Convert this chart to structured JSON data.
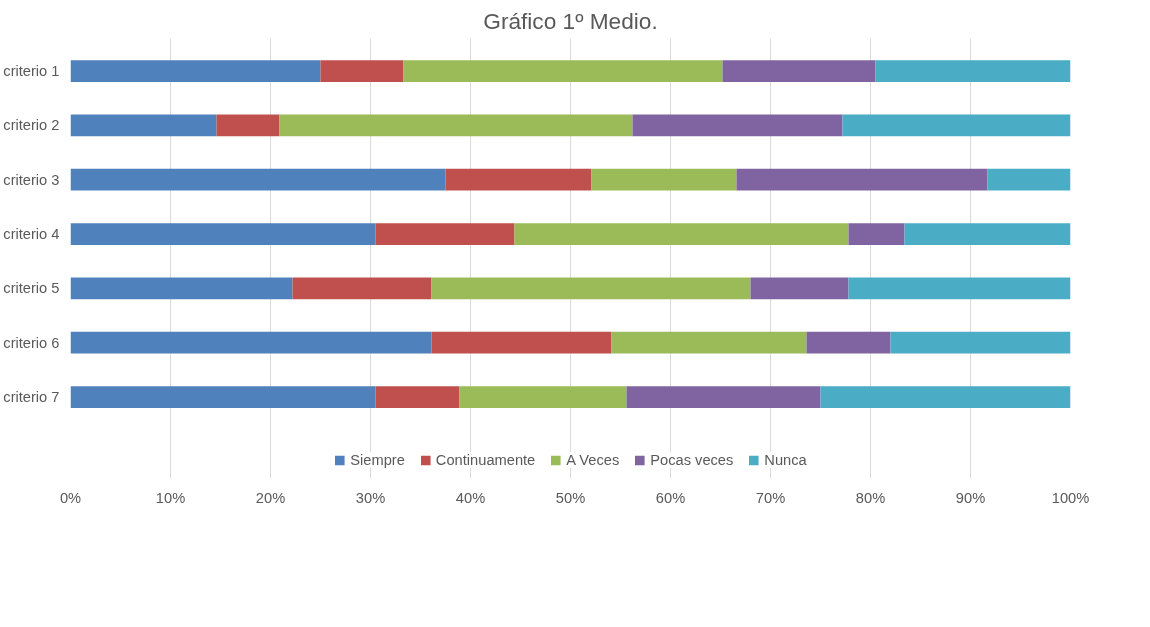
{
  "chart_data": {
    "type": "bar",
    "orientation": "horizontal",
    "stacked": true,
    "title": "Gráfico 1º Medio.",
    "categories": [
      "criterio 1",
      "criterio 2",
      "criterio 3",
      "criterio 4",
      "criterio 5",
      "criterio 6",
      "criterio 7"
    ],
    "series": [
      {
        "name": "Siempre",
        "color": "#4f81bd",
        "values": [
          25.0,
          14.6,
          37.5,
          30.5,
          22.2,
          36.1,
          30.5
        ]
      },
      {
        "name": "Continuamente",
        "color": "#c0504d",
        "values": [
          8.3,
          6.3,
          14.6,
          13.9,
          13.9,
          18.0,
          8.4
        ]
      },
      {
        "name": "A Veces",
        "color": "#9bbb59",
        "values": [
          31.9,
          35.3,
          14.5,
          33.4,
          31.9,
          19.5,
          16.7
        ]
      },
      {
        "name": "Pocas veces",
        "color": "#8064a2",
        "values": [
          15.3,
          21.0,
          25.1,
          5.6,
          9.8,
          8.4,
          19.4
        ]
      },
      {
        "name": "Nunca",
        "color": "#4bacc6",
        "values": [
          19.5,
          22.8,
          8.3,
          16.6,
          22.2,
          18.0,
          25.0
        ]
      }
    ],
    "xlim": [
      0,
      100
    ],
    "xticks": [
      {
        "value": 0,
        "label": "0%"
      },
      {
        "value": 10,
        "label": "10%"
      },
      {
        "value": 20,
        "label": "20%"
      },
      {
        "value": 30,
        "label": "30%"
      },
      {
        "value": 40,
        "label": "40%"
      },
      {
        "value": 50,
        "label": "50%"
      },
      {
        "value": 60,
        "label": "60%"
      },
      {
        "value": 70,
        "label": "70%"
      },
      {
        "value": 80,
        "label": "80%"
      },
      {
        "value": 90,
        "label": "90%"
      },
      {
        "value": 100,
        "label": "100%"
      }
    ],
    "grid": "x",
    "legend": "bottom"
  }
}
